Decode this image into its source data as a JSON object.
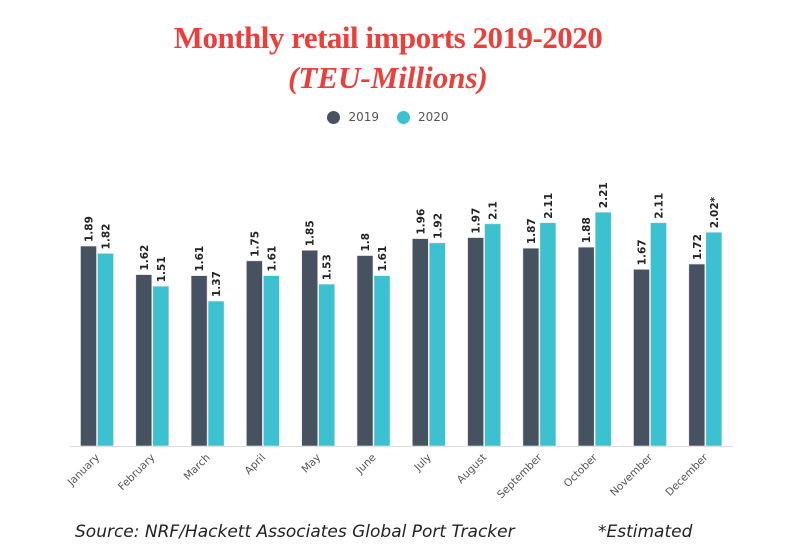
{
  "chart_data": {
    "type": "bar",
    "title": "Monthly retail imports 2019-2020",
    "subtitle": "(TEU-Millions)",
    "categories": [
      "January",
      "February",
      "March",
      "April",
      "May",
      "June",
      "July",
      "August",
      "September",
      "October",
      "November",
      "December"
    ],
    "series": [
      {
        "name": "2019",
        "color": "#475260",
        "values": [
          1.89,
          1.62,
          1.61,
          1.75,
          1.85,
          1.8,
          1.96,
          1.97,
          1.87,
          1.88,
          1.67,
          1.72
        ],
        "labels": [
          "1.89",
          "1.62",
          "1.61",
          "1.75",
          "1.85",
          "1.8",
          "1.96",
          "1.97",
          "1.87",
          "1.88",
          "1.67",
          "1.72"
        ]
      },
      {
        "name": "2020",
        "color": "#3bc1cf",
        "values": [
          1.82,
          1.51,
          1.37,
          1.61,
          1.53,
          1.61,
          1.92,
          2.1,
          2.11,
          2.21,
          2.11,
          2.02
        ],
        "labels": [
          "1.82",
          "1.51",
          "1.37",
          "1.61",
          "1.53",
          "1.61",
          "1.92",
          "2.1",
          "2.11",
          "2.21",
          "2.11",
          "2.02*"
        ]
      }
    ],
    "legend": "top-center",
    "grid": false
  },
  "footer": {
    "source": "Source: NRF/Hackett Associates Global Port Tracker",
    "note": "*Estimated"
  }
}
